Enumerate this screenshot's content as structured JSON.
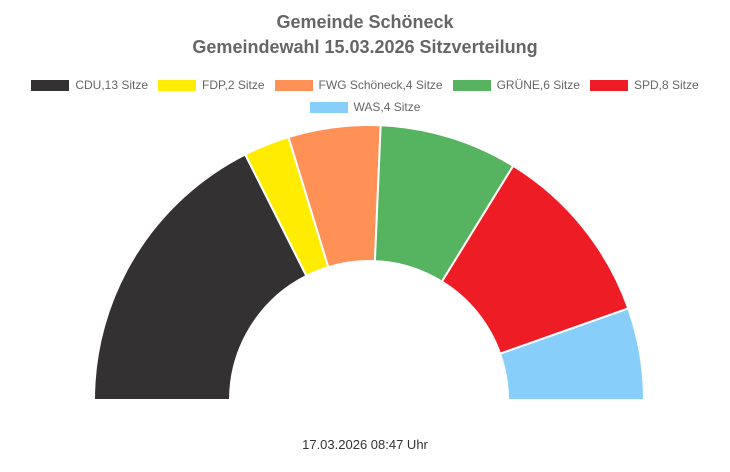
{
  "chart_data": {
    "type": "pie",
    "variant": "semicircle-donut",
    "title": "Gemeinde Schöneck",
    "subtitle": "Gemeindewahl 15.03.2026 Sitzverteilung",
    "legend_position": "top",
    "series": [
      {
        "name": "CDU,13 Sitze",
        "party": "CDU",
        "value": 13,
        "color": "#333132"
      },
      {
        "name": "FDP,2 Sitze",
        "party": "FDP",
        "value": 2,
        "color": "#ffec00"
      },
      {
        "name": "FWG Schöneck,4 Sitze",
        "party": "FWG Schöneck",
        "value": 4,
        "color": "#ff9157"
      },
      {
        "name": "GRÜNE,6 Sitze",
        "party": "GRÜNE",
        "value": 6,
        "color": "#56b460"
      },
      {
        "name": "SPD,8 Sitze",
        "party": "SPD",
        "value": 8,
        "color": "#ee1c25"
      },
      {
        "name": "WAS,4 Sitze",
        "party": "WAS",
        "value": 4,
        "color": "#87cefa"
      }
    ]
  },
  "footer": {
    "timestamp": "17.03.2026 08:47 Uhr"
  }
}
